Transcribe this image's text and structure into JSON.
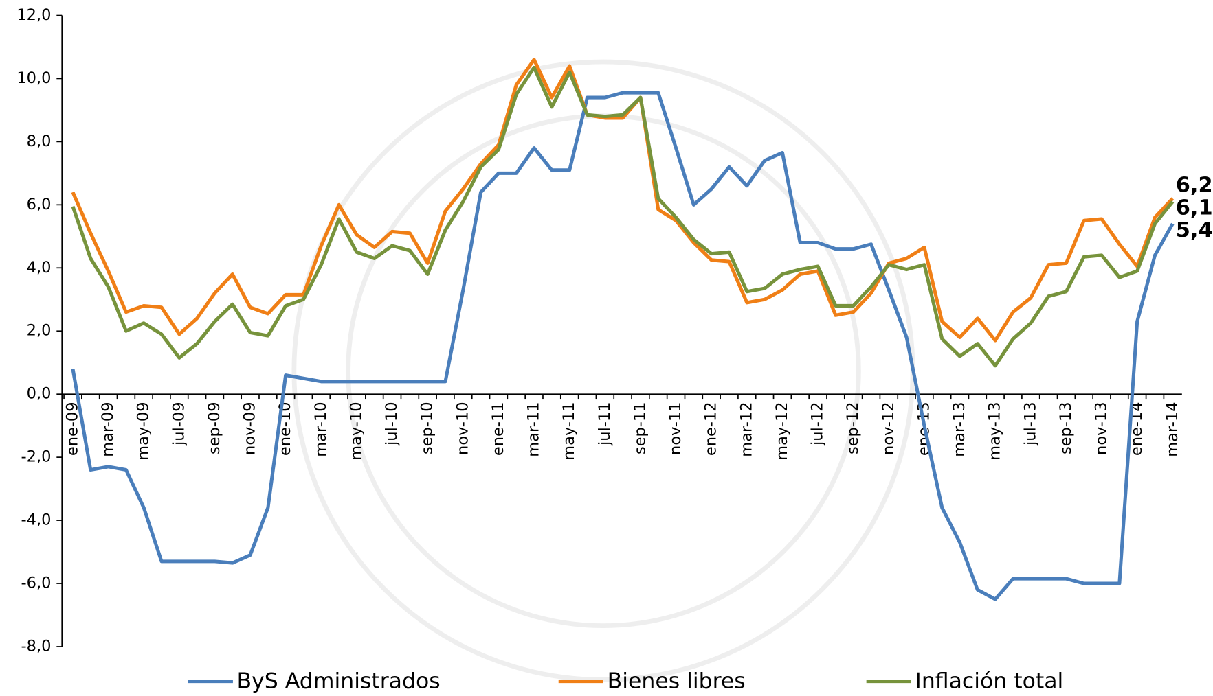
{
  "chart_data": {
    "type": "line",
    "categories": [
      "ene-09",
      null,
      "mar-09",
      null,
      "may-09",
      null,
      "jul-09",
      null,
      "sep-09",
      null,
      "nov-09",
      null,
      "ene-10",
      null,
      "mar-10",
      null,
      "may-10",
      null,
      "jul-10",
      null,
      "sep-10",
      null,
      "nov-10",
      null,
      "ene-11",
      null,
      "mar-11",
      null,
      "may-11",
      null,
      "jul-11",
      null,
      "sep-11",
      null,
      "nov-11",
      null,
      "ene-12",
      null,
      "mar-12",
      null,
      "may-12",
      null,
      "jul-12",
      null,
      "sep-12",
      null,
      "nov-12",
      null,
      "ene-13",
      null,
      "mar-13",
      null,
      "may-13",
      null,
      "jul-13",
      null,
      "sep-13",
      null,
      "nov-13",
      null,
      "ene-14",
      null,
      "mar-14"
    ],
    "series": [
      {
        "name": "ByS Administrados",
        "color": "#4a7ebb",
        "values": [
          0.8,
          -2.4,
          -2.3,
          -2.4,
          -3.6,
          -5.3,
          -5.3,
          -5.3,
          -5.3,
          -5.35,
          -5.1,
          -3.6,
          0.6,
          0.5,
          0.4,
          0.4,
          0.4,
          0.4,
          0.4,
          0.4,
          0.4,
          0.4,
          3.3,
          6.4,
          7.0,
          7.0,
          7.8,
          7.1,
          7.1,
          9.4,
          9.4,
          9.55,
          9.55,
          9.55,
          7.8,
          6.0,
          6.5,
          7.2,
          6.6,
          7.4,
          7.65,
          4.8,
          4.8,
          4.6,
          4.6,
          4.75,
          3.3,
          1.8,
          -1.0,
          -3.6,
          -4.7,
          -6.2,
          -6.5,
          -5.85,
          -5.85,
          -5.85,
          -5.85,
          -6.0,
          -6.0,
          -6.0,
          2.3,
          4.4,
          5.4
        ],
        "value_labels": [
          null,
          null,
          null,
          null,
          null,
          null,
          null,
          null,
          null,
          null,
          null,
          null,
          null,
          null,
          null,
          null,
          null,
          null,
          null,
          null,
          null,
          null,
          null,
          null,
          null,
          null,
          null,
          null,
          null,
          null,
          null,
          null,
          null,
          null,
          null,
          null,
          null,
          null,
          null,
          null,
          null,
          null,
          null,
          null,
          null,
          null,
          null,
          null,
          null,
          null,
          null,
          null,
          null,
          null,
          null,
          null,
          null,
          null,
          null,
          null,
          null,
          null,
          "5,4"
        ]
      },
      {
        "name": "Bienes libres",
        "color": "#f07f16",
        "values": [
          6.4,
          5.1,
          3.9,
          2.6,
          2.8,
          2.75,
          1.9,
          2.4,
          3.2,
          3.8,
          2.75,
          2.55,
          3.15,
          3.15,
          4.7,
          6.0,
          5.05,
          4.65,
          5.15,
          5.1,
          4.15,
          5.8,
          6.5,
          7.3,
          7.9,
          9.8,
          10.6,
          9.4,
          10.4,
          8.85,
          8.75,
          8.75,
          9.4,
          5.85,
          5.5,
          4.8,
          4.25,
          4.2,
          2.9,
          3.0,
          3.3,
          3.8,
          3.9,
          2.5,
          2.6,
          3.2,
          4.15,
          4.3,
          4.65,
          2.3,
          1.8,
          2.4,
          1.7,
          2.6,
          3.05,
          4.1,
          4.15,
          5.5,
          5.55,
          4.75,
          4.05,
          5.6,
          6.2
        ],
        "value_labels": [
          null,
          null,
          null,
          null,
          null,
          null,
          null,
          null,
          null,
          null,
          null,
          null,
          null,
          null,
          null,
          null,
          null,
          null,
          null,
          null,
          null,
          null,
          null,
          null,
          null,
          null,
          null,
          null,
          null,
          null,
          null,
          null,
          null,
          null,
          null,
          null,
          null,
          null,
          null,
          null,
          null,
          null,
          null,
          null,
          null,
          null,
          null,
          null,
          null,
          null,
          null,
          null,
          null,
          null,
          null,
          null,
          null,
          null,
          null,
          null,
          null,
          null,
          "6,2"
        ]
      },
      {
        "name": "Inflación total",
        "color": "#77933c",
        "values": [
          5.95,
          4.3,
          3.4,
          2.0,
          2.25,
          1.9,
          1.15,
          1.6,
          2.3,
          2.85,
          1.95,
          1.85,
          2.8,
          3.0,
          4.1,
          5.55,
          4.5,
          4.3,
          4.7,
          4.55,
          3.8,
          5.2,
          6.1,
          7.2,
          7.75,
          9.5,
          10.35,
          9.1,
          10.2,
          8.85,
          8.8,
          8.85,
          9.4,
          6.2,
          5.6,
          4.9,
          4.45,
          4.5,
          3.25,
          3.35,
          3.8,
          3.95,
          4.05,
          2.8,
          2.8,
          3.4,
          4.1,
          3.95,
          4.1,
          1.75,
          1.2,
          1.6,
          0.9,
          1.75,
          2.25,
          3.1,
          3.25,
          4.35,
          4.4,
          3.7,
          3.9,
          5.4,
          6.1
        ],
        "value_labels": [
          null,
          null,
          null,
          null,
          null,
          null,
          null,
          null,
          null,
          null,
          null,
          null,
          null,
          null,
          null,
          null,
          null,
          null,
          null,
          null,
          null,
          null,
          null,
          null,
          null,
          null,
          null,
          null,
          null,
          null,
          null,
          null,
          null,
          null,
          null,
          null,
          null,
          null,
          null,
          null,
          null,
          null,
          null,
          null,
          null,
          null,
          null,
          null,
          null,
          null,
          null,
          null,
          null,
          null,
          null,
          null,
          null,
          null,
          null,
          null,
          null,
          null,
          "6,1"
        ]
      }
    ],
    "ylim": [
      -8,
      12
    ],
    "yticks": [
      {
        "value": -8,
        "label": "-8,0"
      },
      {
        "value": -6,
        "label": "-6,0"
      },
      {
        "value": -4,
        "label": "-4,0"
      },
      {
        "value": -2,
        "label": "-2,0"
      },
      {
        "value": 0,
        "label": "0,0"
      },
      {
        "value": 2,
        "label": "2,0"
      },
      {
        "value": 4,
        "label": "4,0"
      },
      {
        "value": 6,
        "label": "6,0"
      },
      {
        "value": 8,
        "label": "8,0"
      },
      {
        "value": 10,
        "label": "10,0"
      },
      {
        "value": 12,
        "label": "12,0"
      }
    ],
    "grid": false,
    "legend": "bottom"
  }
}
